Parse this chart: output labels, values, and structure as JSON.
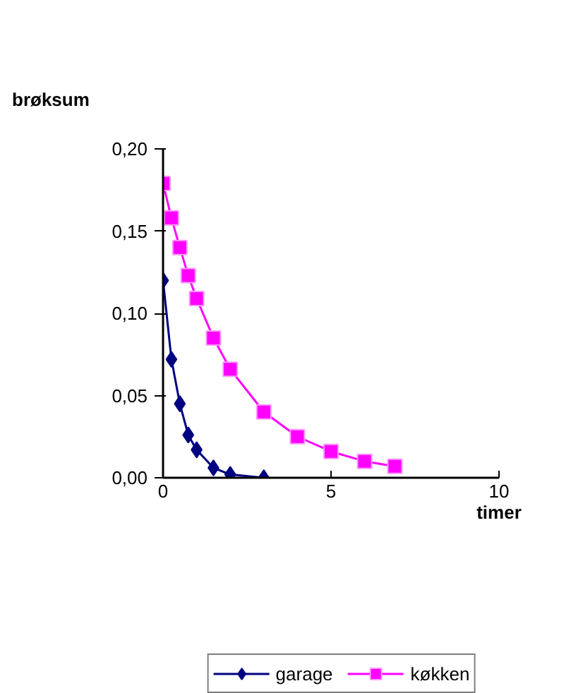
{
  "chart_data": {
    "type": "line",
    "ylabel": "brøksum",
    "xlabel": "timer",
    "xlim": [
      0,
      10
    ],
    "ylim": [
      0,
      0.2
    ],
    "xticks": [
      0,
      5,
      10
    ],
    "yticks": [
      {
        "value": 0,
        "label": "0,00"
      },
      {
        "value": 0.05,
        "label": "0,05"
      },
      {
        "value": 0.1,
        "label": "0,10"
      },
      {
        "value": 0.15,
        "label": "0,15"
      },
      {
        "value": 0.2,
        "label": "0,20"
      }
    ],
    "grid": false,
    "legend": "bottom",
    "series": [
      {
        "name": "garage",
        "color": "#000080",
        "marker": "diamond",
        "x": [
          0,
          0.25,
          0.5,
          0.75,
          1,
          1.5,
          2,
          3
        ],
        "values": [
          0.12,
          0.072,
          0.045,
          0.026,
          0.017,
          0.006,
          0.002,
          0
        ]
      },
      {
        "name": "køkken",
        "color": "#ff00ff",
        "marker": "square",
        "x": [
          0,
          0.25,
          0.5,
          0.75,
          1,
          1.5,
          2,
          3,
          4,
          5,
          6,
          6.9
        ],
        "values": [
          0.179,
          0.158,
          0.14,
          0.123,
          0.109,
          0.085,
          0.066,
          0.04,
          0.025,
          0.016,
          0.01,
          0.007
        ]
      }
    ]
  }
}
